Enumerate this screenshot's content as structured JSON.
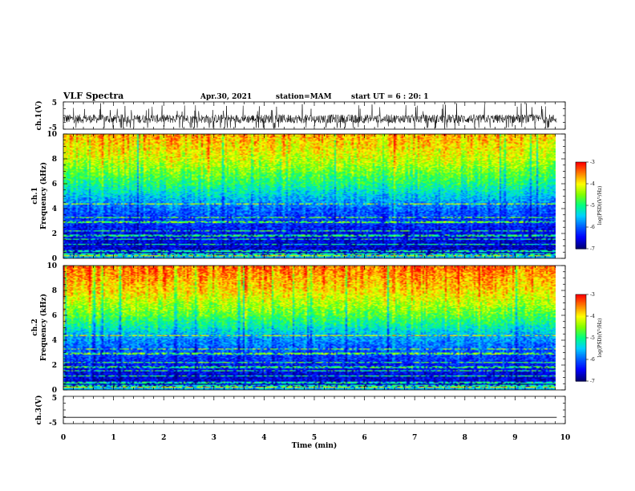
{
  "header": {
    "title": "VLF Spectra",
    "date": "Apr.30, 2021",
    "station": "station=MAM",
    "start": "start  UT =   6 : 20: 1"
  },
  "chart_data": [
    {
      "type": "line",
      "name": "ch1-waveform",
      "ylabel": "ch.1(V)",
      "xlim": [
        0,
        10
      ],
      "ylim": [
        -5,
        5
      ],
      "yticks": [
        5,
        -5
      ],
      "description_values": {
        "typical_range": [
          -4,
          2
        ]
      }
    },
    {
      "type": "heatmap",
      "name": "ch1-spectrogram",
      "ylabel_top": "ch.1",
      "ylabel": "Frequency (kHz)",
      "xlim": [
        0,
        9.83
      ],
      "ylim": [
        0,
        10
      ],
      "yticks": [
        0,
        2,
        4,
        6,
        8,
        10
      ],
      "colorbar": {
        "label": "log(PSD)(V²/Hz)",
        "ticks": [
          -3,
          -4,
          -5,
          -6,
          -7
        ],
        "range": [
          -7,
          -3
        ]
      },
      "profile_log_psd_by_freq_khz": [
        [
          0,
          -6.8
        ],
        [
          2,
          -6.5
        ],
        [
          4,
          -6.0
        ],
        [
          6,
          -5.0
        ],
        [
          8,
          -4.2
        ],
        [
          10,
          -3.7
        ]
      ]
    },
    {
      "type": "heatmap",
      "name": "ch2-spectrogram",
      "ylabel_top": "ch.2",
      "ylabel": "Frequency (kHz)",
      "xlim": [
        0,
        9.83
      ],
      "ylim": [
        0,
        10
      ],
      "yticks": [
        0,
        2,
        4,
        6,
        8,
        10
      ],
      "colorbar": {
        "label": "log(PSD)(V²/Hz)",
        "ticks": [
          -3,
          -4,
          -5,
          -6,
          -7
        ],
        "range": [
          -7,
          -3
        ]
      },
      "profile_log_psd_by_freq_khz": [
        [
          0,
          -6.8
        ],
        [
          2,
          -6.4
        ],
        [
          4,
          -5.8
        ],
        [
          6,
          -4.7
        ],
        [
          8,
          -3.9
        ],
        [
          10,
          -3.4
        ]
      ]
    },
    {
      "type": "line",
      "name": "ch3-waveform",
      "ylabel": "ch.3(V)",
      "xlim": [
        0,
        10
      ],
      "ylim": [
        -5,
        5
      ],
      "yticks": [
        5,
        -5
      ],
      "values": [
        [
          0,
          -2.7
        ],
        [
          9.83,
          -2.7
        ]
      ]
    }
  ],
  "xaxis": {
    "label": "Time (min)",
    "ticks": [
      "0",
      "1",
      "2",
      "3",
      "4",
      "5",
      "6",
      "7",
      "8",
      "9",
      "10"
    ]
  },
  "colors": {
    "colormap": [
      "#00007a",
      "#0000ff",
      "#0060ff",
      "#00d0ff",
      "#00ff80",
      "#80ff00",
      "#ffff00",
      "#ff8000",
      "#ff0000"
    ]
  }
}
